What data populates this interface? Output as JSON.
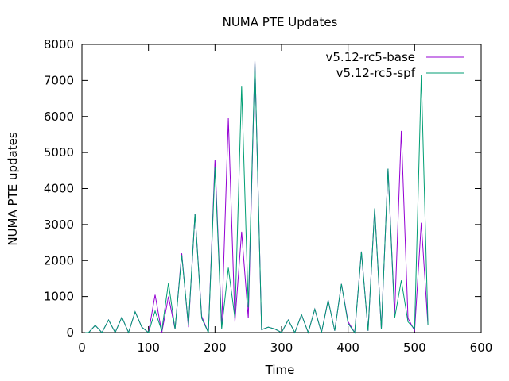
{
  "chart_data": {
    "type": "line",
    "title": "NUMA PTE Updates",
    "xlabel": "Time",
    "ylabel": "NUMA PTE updates",
    "xlim": [
      0,
      600
    ],
    "ylim": [
      0,
      8000
    ],
    "xticks": [
      0,
      100,
      200,
      300,
      400,
      500,
      600
    ],
    "yticks": [
      0,
      1000,
      2000,
      3000,
      4000,
      5000,
      6000,
      7000,
      8000
    ],
    "legend_position": "top-right",
    "grid": false,
    "series": [
      {
        "name": "v5.12-rc5-base",
        "color": "#9400d3",
        "points": [
          [
            5,
            0
          ],
          [
            10,
            0
          ],
          [
            20,
            200
          ],
          [
            30,
            0
          ],
          [
            40,
            350
          ],
          [
            50,
            0
          ],
          [
            60,
            430
          ],
          [
            70,
            0
          ],
          [
            80,
            580
          ],
          [
            90,
            150
          ],
          [
            100,
            0
          ],
          [
            110,
            1050
          ],
          [
            120,
            0
          ],
          [
            130,
            1000
          ],
          [
            140,
            100
          ],
          [
            150,
            2200
          ],
          [
            160,
            150
          ],
          [
            170,
            3300
          ],
          [
            180,
            450
          ],
          [
            190,
            0
          ],
          [
            200,
            4800
          ],
          [
            210,
            150
          ],
          [
            220,
            5950
          ],
          [
            230,
            300
          ],
          [
            240,
            2800
          ],
          [
            250,
            400
          ],
          [
            260,
            7550
          ],
          [
            270,
            80
          ],
          [
            280,
            150
          ],
          [
            290,
            100
          ],
          [
            300,
            0
          ],
          [
            310,
            350
          ],
          [
            320,
            0
          ],
          [
            330,
            500
          ],
          [
            340,
            0
          ],
          [
            350,
            650
          ],
          [
            360,
            0
          ],
          [
            370,
            900
          ],
          [
            380,
            50
          ],
          [
            390,
            1350
          ],
          [
            400,
            300
          ],
          [
            410,
            0
          ],
          [
            420,
            2250
          ],
          [
            430,
            50
          ],
          [
            440,
            3450
          ],
          [
            450,
            100
          ],
          [
            460,
            4550
          ],
          [
            470,
            500
          ],
          [
            480,
            5600
          ],
          [
            490,
            400
          ],
          [
            500,
            50
          ],
          [
            510,
            3050
          ],
          [
            520,
            200
          ]
        ]
      },
      {
        "name": "v5.12-rc5-spf",
        "color": "#009e73",
        "points": [
          [
            5,
            0
          ],
          [
            10,
            0
          ],
          [
            20,
            200
          ],
          [
            30,
            0
          ],
          [
            40,
            350
          ],
          [
            50,
            0
          ],
          [
            60,
            430
          ],
          [
            70,
            0
          ],
          [
            80,
            580
          ],
          [
            90,
            150
          ],
          [
            100,
            0
          ],
          [
            110,
            600
          ],
          [
            120,
            50
          ],
          [
            130,
            1380
          ],
          [
            140,
            100
          ],
          [
            150,
            2150
          ],
          [
            160,
            200
          ],
          [
            170,
            3300
          ],
          [
            180,
            400
          ],
          [
            190,
            0
          ],
          [
            200,
            4600
          ],
          [
            210,
            100
          ],
          [
            220,
            1800
          ],
          [
            230,
            400
          ],
          [
            240,
            6850
          ],
          [
            250,
            700
          ],
          [
            260,
            7550
          ],
          [
            270,
            80
          ],
          [
            280,
            150
          ],
          [
            290,
            100
          ],
          [
            300,
            0
          ],
          [
            310,
            350
          ],
          [
            320,
            0
          ],
          [
            330,
            500
          ],
          [
            340,
            0
          ],
          [
            350,
            650
          ],
          [
            360,
            0
          ],
          [
            370,
            900
          ],
          [
            380,
            50
          ],
          [
            390,
            1350
          ],
          [
            400,
            250
          ],
          [
            410,
            0
          ],
          [
            420,
            2250
          ],
          [
            430,
            50
          ],
          [
            440,
            3450
          ],
          [
            450,
            100
          ],
          [
            460,
            4550
          ],
          [
            470,
            400
          ],
          [
            480,
            1450
          ],
          [
            490,
            300
          ],
          [
            500,
            100
          ],
          [
            510,
            7150
          ],
          [
            520,
            200
          ]
        ]
      }
    ]
  }
}
